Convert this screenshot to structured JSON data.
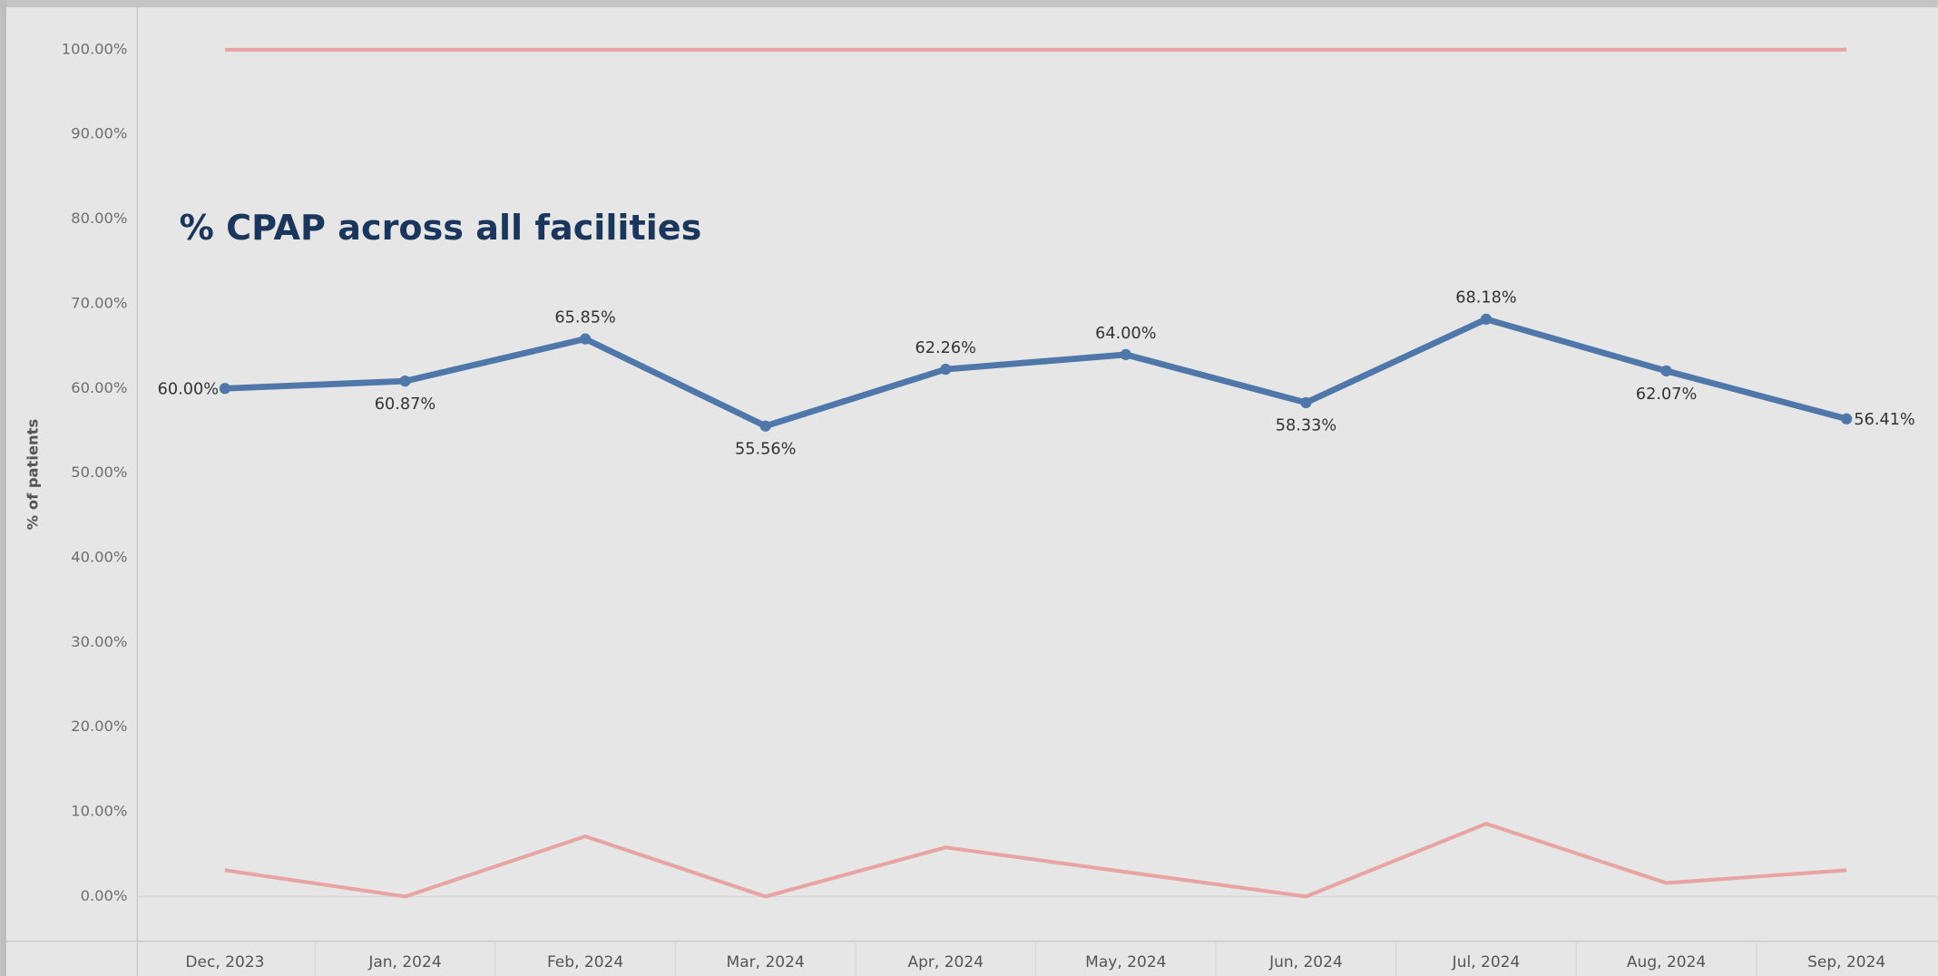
{
  "chart_data": {
    "type": "line",
    "annotation": "% CPAP across all facilities",
    "y_label": "% of patients",
    "categories": [
      "Dec, 2023",
      "Jan, 2024",
      "Feb, 2024",
      "Mar, 2024",
      "Apr, 2024",
      "May, 2024",
      "Jun, 2024",
      "Jul, 2024",
      "Aug, 2024",
      "Sep, 2024"
    ],
    "series": [
      {
        "color": "#4f77aa",
        "values": [
          60,
          60.87,
          65.85,
          55.56,
          62.26,
          64,
          58.33,
          68.18,
          62.07,
          56.41
        ],
        "value_labels": [
          "60.00%",
          "60.87%",
          "65.85%",
          "55.56%",
          "62.26%",
          "64.00%",
          "58.33%",
          "68.18%",
          "62.07%",
          "56.41%"
        ]
      },
      {
        "color": "#e8a3a3",
        "values": [
          100,
          100,
          100,
          100,
          100,
          100,
          100,
          100,
          100,
          100
        ]
      },
      {
        "color": "#e8a3a3",
        "values": [
          3.1,
          0,
          7.1,
          0,
          5.8,
          2.9,
          0,
          8.6,
          1.6,
          3.1
        ]
      }
    ],
    "ylim": [
      -5.3,
      105
    ],
    "yticks": [
      {
        "value": 0,
        "label": "0.00%"
      },
      {
        "value": 10,
        "label": "10.00%"
      },
      {
        "value": 20,
        "label": "20.00%"
      },
      {
        "value": 30,
        "label": "30.00%"
      },
      {
        "value": 40,
        "label": "40.00%"
      },
      {
        "value": 50,
        "label": "50.00%"
      },
      {
        "value": 60,
        "label": "60.00%"
      },
      {
        "value": 70,
        "label": "70.00%"
      },
      {
        "value": 80,
        "label": "80.00%"
      },
      {
        "value": 90,
        "label": "90.00%"
      },
      {
        "value": 100,
        "label": "100.00%"
      }
    ]
  }
}
